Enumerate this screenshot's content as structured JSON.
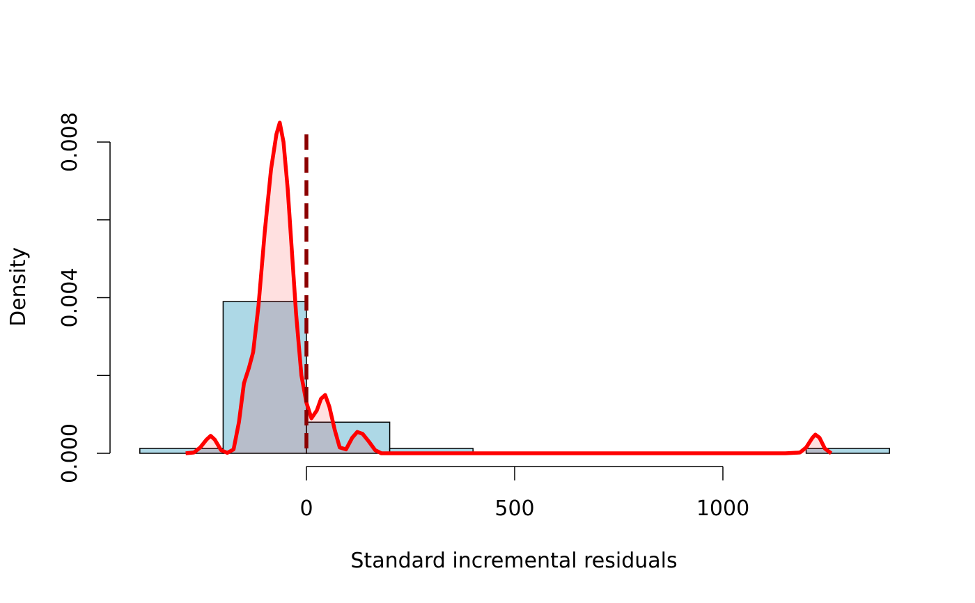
{
  "chart_data": {
    "type": "histogram",
    "xlabel": "Standard incremental residuals",
    "ylabel": "Density",
    "x_ticks": [
      "0",
      "500",
      "1000"
    ],
    "x_tick_values": [
      0,
      500,
      1000
    ],
    "y_ticks": [
      "0.000",
      "0.004",
      "0.008"
    ],
    "y_tick_values": [
      0,
      0.002,
      0.004,
      0.006,
      0.008
    ],
    "xlim": [
      -400,
      1400
    ],
    "ylim": [
      0,
      0.008
    ],
    "histogram": {
      "bins": [
        {
          "from": -400,
          "to": -200,
          "density": 0.000125
        },
        {
          "from": -200,
          "to": 0,
          "density": 0.0039
        },
        {
          "from": 0,
          "to": 200,
          "density": 0.0008
        },
        {
          "from": 200,
          "to": 400,
          "density": 0.000125
        },
        {
          "from": 1200,
          "to": 1400,
          "density": 0.000125
        }
      ],
      "fill": "#add8e6"
    },
    "density_curve": {
      "color": "#ff0000",
      "fill": "rgba(255,0,0,0.12)",
      "points": [
        [
          -290,
          0.0
        ],
        [
          -270,
          2e-05
        ],
        [
          -255,
          0.00015
        ],
        [
          -240,
          0.00035
        ],
        [
          -230,
          0.00045
        ],
        [
          -220,
          0.00035
        ],
        [
          -205,
          8e-05
        ],
        [
          -190,
          1e-05
        ],
        [
          -175,
          0.0001
        ],
        [
          -162,
          0.0008
        ],
        [
          -150,
          0.0018
        ],
        [
          -138,
          0.0022
        ],
        [
          -128,
          0.0026
        ],
        [
          -115,
          0.0038
        ],
        [
          -100,
          0.0057
        ],
        [
          -85,
          0.0073
        ],
        [
          -72,
          0.0082
        ],
        [
          -64,
          0.0085
        ],
        [
          -55,
          0.008
        ],
        [
          -45,
          0.0068
        ],
        [
          -35,
          0.0052
        ],
        [
          -25,
          0.0036
        ],
        [
          -12,
          0.002
        ],
        [
          0,
          0.0013
        ],
        [
          12,
          0.0009
        ],
        [
          25,
          0.0011
        ],
        [
          35,
          0.0014
        ],
        [
          45,
          0.0015
        ],
        [
          55,
          0.0012
        ],
        [
          68,
          0.0006
        ],
        [
          80,
          0.00015
        ],
        [
          95,
          0.0001
        ],
        [
          110,
          0.0004
        ],
        [
          122,
          0.00055
        ],
        [
          135,
          0.0005
        ],
        [
          150,
          0.0003
        ],
        [
          165,
          8e-05
        ],
        [
          180,
          0.0
        ],
        [
          300,
          0.0
        ],
        [
          600,
          0.0
        ],
        [
          900,
          0.0
        ],
        [
          1150,
          0.0
        ],
        [
          1185,
          2e-05
        ],
        [
          1200,
          0.00015
        ],
        [
          1215,
          0.0004
        ],
        [
          1222,
          0.00048
        ],
        [
          1232,
          0.0004
        ],
        [
          1245,
          0.00012
        ],
        [
          1260,
          0.0
        ]
      ]
    },
    "reference_line": {
      "x": 0,
      "style": "dashed",
      "color": "#8b0000"
    }
  }
}
